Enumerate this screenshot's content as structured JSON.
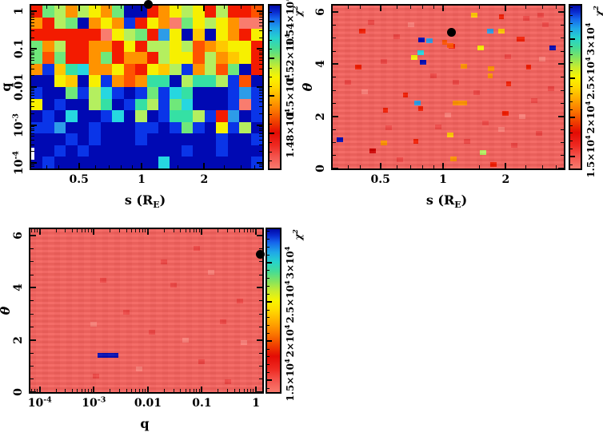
{
  "figure": {
    "background": "#ffffff"
  },
  "labels": {
    "colorbar_title": "χ^{2}"
  },
  "palette": {
    "N": "#0009b3",
    "B": "#0a35e8",
    "S": "#2d9ce8",
    "C": "#26d7e0",
    "T": "#35e0a4",
    "G": "#6fe87a",
    "P": "#b4ef5f",
    "Y": "#f7f000",
    "D": "#ffc800",
    "O": "#ff9300",
    "K": "#ff5300",
    "R": "#f31b00",
    "E": "#cf0000",
    "M": "#f97c6e",
    "F": "#ee4543",
    "L": "#fb8078",
    "bg": "#f4615c"
  },
  "colormap": [
    [
      "#f87a6d",
      0
    ],
    [
      "#f4564f",
      7
    ],
    [
      "#ee2a22",
      14
    ],
    [
      "#e30b04",
      22
    ],
    [
      "#f04300",
      29
    ],
    [
      "#fb7a00",
      36
    ],
    [
      "#ffab00",
      43
    ],
    [
      "#ffd900",
      50
    ],
    [
      "#f8f400",
      56
    ],
    [
      "#c9ec2e",
      62
    ],
    [
      "#84e45e",
      68
    ],
    [
      "#45dc96",
      74
    ],
    [
      "#26d3cc",
      80
    ],
    [
      "#1fa6e8",
      86
    ],
    [
      "#1563ec",
      92
    ],
    [
      "#0a2cd0",
      96
    ],
    [
      "#0109a8",
      100
    ]
  ],
  "chart_data": [
    {
      "id": "p1",
      "type": "heatmap",
      "xlabel": "s (R_{E})",
      "ylabel": "q",
      "xlabel_italic": false,
      "ylabel_italic": false,
      "x": {
        "type": "log",
        "min": 0.295,
        "max": 3.8,
        "major": [
          {
            "v": 0.5,
            "label": "0.5"
          },
          {
            "v": 1,
            "label": "1"
          },
          {
            "v": 2,
            "label": "2"
          }
        ],
        "minor": [
          0.35,
          0.4,
          0.6,
          0.7,
          0.8,
          0.9,
          1.5,
          2.5,
          3,
          3.5
        ]
      },
      "y": {
        "type": "log",
        "min": 7.2e-05,
        "max": 1.395,
        "major": [
          {
            "v": 1,
            "label": "1"
          },
          {
            "v": 0.1,
            "label": "0.1"
          },
          {
            "v": 0.01,
            "label": "0.01"
          },
          {
            "v": 0.001,
            "label": "10^{-3}"
          },
          {
            "v": 0.0001,
            "label": "10^{-4}"
          }
        ],
        "minor": "log"
      },
      "cb": {
        "min": 14610,
        "max": 15485,
        "minor_step": 50,
        "major": [
          {
            "v": 14800,
            "label": "1.48×10^{4}"
          },
          {
            "v": 15000,
            "label": "1.5×10^{4}"
          },
          {
            "v": 15200,
            "label": "1.52×10^{4}"
          },
          {
            "v": 15400,
            "label": "1.54×10^{4}"
          }
        ]
      },
      "grid": [
        "RGPOPYOGNNROYPYRPRRK",
        "ORPGNOYOBRYOMGYPYOMM",
        "RRRRRRMYPGRSYNDNYORY",
        "GOPRROORYRPPYPKODYYR",
        "GKGRROGROORPYYKPODYR",
        "OBDTCOOYKRYDPBOPKGNR",
        "NNYDNYBOKOTTNPTTPBKN",
        "BNNGBPCBNBGBCTNNNBSB",
        "YNBNNPTNBTPBGCNNNBMB",
        "NBNCNNBCNPNBTTPBRSNB",
        "BBSNNBNNNBBNBGBNYBPN",
        "NNNBNBNNNBNNNNNNBNNB",
        "NNBNBNNNNNNNNBNNBNNN",
        "NBNNNNNNNNNCNNNNNNNB"
      ],
      "artifacts": [
        [
          0,
          178,
          4,
          15
        ],
        [
          289,
          178,
          4,
          15
        ]
      ],
      "best_fit": {
        "x": 1.08,
        "y": 1.5
      }
    },
    {
      "id": "p2",
      "type": "heatmap",
      "xlabel": "s (R_{E})",
      "ylabel": "θ",
      "xlabel_italic": false,
      "ylabel_italic": true,
      "background": "bg",
      "x": {
        "type": "log",
        "min": 0.295,
        "max": 3.8,
        "major": [
          {
            "v": 0.5,
            "label": "0.5"
          },
          {
            "v": 1,
            "label": "1"
          },
          {
            "v": 2,
            "label": "2"
          }
        ],
        "minor": [
          0.35,
          0.4,
          0.6,
          0.7,
          0.8,
          0.9,
          1.5,
          2.5,
          3,
          3.5
        ]
      },
      "y": {
        "type": "linear",
        "min": 0,
        "max": 6.25,
        "major": [
          {
            "v": 0,
            "label": "0"
          },
          {
            "v": 2,
            "label": "2"
          },
          {
            "v": 4,
            "label": "4"
          },
          {
            "v": 6,
            "label": "6"
          }
        ],
        "minor_step": 0.5
      },
      "cb": {
        "min": 13500,
        "max": 34300,
        "minor_step": 1000,
        "major": [
          {
            "v": 15000,
            "label": "1.5×10^{4}"
          },
          {
            "v": 20000,
            "label": "2×10^{4}"
          },
          {
            "v": 25000,
            "label": "2.5×10^{4}"
          },
          {
            "v": 30000,
            "label": "3×10^{4}"
          }
        ]
      },
      "anomalies": [
        [
          0.32,
          1.1,
          "N"
        ],
        [
          0.52,
          0.98,
          "O"
        ],
        [
          0.46,
          0.66,
          "E"
        ],
        [
          0.41,
          5.26,
          "R"
        ],
        [
          0.39,
          3.9,
          "R"
        ],
        [
          0.78,
          4.43,
          "C"
        ],
        [
          0.73,
          4.25,
          "Y"
        ],
        [
          0.8,
          4.06,
          "N"
        ],
        [
          0.79,
          4.92,
          "N"
        ],
        [
          0.86,
          4.9,
          "S"
        ],
        [
          1.02,
          4.83,
          "K",
          6
        ],
        [
          1.1,
          4.7,
          "R"
        ],
        [
          0.75,
          2.52,
          "S"
        ],
        [
          0.66,
          2.82,
          "R",
          6
        ],
        [
          1.08,
          1.28,
          "D"
        ],
        [
          0.74,
          1.05,
          "R",
          6
        ],
        [
          1.2,
          2.5,
          "O",
          18
        ],
        [
          1.26,
          3.92,
          "O"
        ],
        [
          1.7,
          3.82,
          "O"
        ],
        [
          1.12,
          0.37,
          "O"
        ],
        [
          1.55,
          0.6,
          "P"
        ],
        [
          1.41,
          5.88,
          "D"
        ],
        [
          1.9,
          5.83,
          "R",
          6
        ],
        [
          1.69,
          5.28,
          "S"
        ],
        [
          1.9,
          5.28,
          "D"
        ],
        [
          2.35,
          4.95,
          "R",
          10
        ],
        [
          1.08,
          4.73,
          "K"
        ],
        [
          1.51,
          4.64,
          "Y"
        ],
        [
          3.35,
          4.64,
          "N"
        ],
        [
          2.58,
          3.9,
          "R",
          6
        ],
        [
          1.69,
          3.55,
          "O",
          6
        ],
        [
          2.07,
          3.25,
          "R",
          6
        ],
        [
          2.0,
          2.1,
          "R"
        ],
        [
          1.75,
          0.15,
          "R"
        ],
        [
          0.78,
          2.3,
          "R",
          6
        ],
        [
          0.53,
          2.25,
          "R",
          6
        ]
      ],
      "faint": [
        [
          0.45,
          5.62,
          "F"
        ],
        [
          0.6,
          5.05,
          "F"
        ],
        [
          0.52,
          4.1,
          "F"
        ],
        [
          0.35,
          3.3,
          "F"
        ],
        [
          0.62,
          0.35,
          "F"
        ],
        [
          0.95,
          1.6,
          "F"
        ],
        [
          1.3,
          1.05,
          "F"
        ],
        [
          1.6,
          1.75,
          "F"
        ],
        [
          2.2,
          0.9,
          "F"
        ],
        [
          2.75,
          2.6,
          "F"
        ],
        [
          3.1,
          5.5,
          "F"
        ],
        [
          2.5,
          5.75,
          "F"
        ],
        [
          1.15,
          3.3,
          "F"
        ],
        [
          0.9,
          3.55,
          "F"
        ],
        [
          2.9,
          1.35,
          "F"
        ],
        [
          3.3,
          3.05,
          "F"
        ],
        [
          2.05,
          4.3,
          "F"
        ],
        [
          1.45,
          2.9,
          "F"
        ],
        [
          0.55,
          1.55,
          "F"
        ],
        [
          2.95,
          5.88,
          "F"
        ],
        [
          0.7,
          5.5,
          "L"
        ],
        [
          1.9,
          1.5,
          "L"
        ],
        [
          2.4,
          2.0,
          "L"
        ],
        [
          3.0,
          4.2,
          "L"
        ],
        [
          1.05,
          2.05,
          "L"
        ],
        [
          0.42,
          2.95,
          "L"
        ]
      ],
      "best_fit": {
        "x": 1.1,
        "y": 5.22
      }
    },
    {
      "id": "p3",
      "type": "heatmap",
      "xlabel": "q",
      "ylabel": "θ",
      "xlabel_italic": false,
      "ylabel_italic": true,
      "background": "bg",
      "x": {
        "type": "log",
        "min": 6.7e-05,
        "max": 1.31,
        "major": [
          {
            "v": 0.0001,
            "label": "10^{-4}"
          },
          {
            "v": 0.001,
            "label": "10^{-3}"
          },
          {
            "v": 0.01,
            "label": "0.01"
          },
          {
            "v": 0.1,
            "label": "0.1"
          },
          {
            "v": 1,
            "label": "1"
          }
        ],
        "minor": "log"
      },
      "y": {
        "type": "linear",
        "min": 0,
        "max": 6.25,
        "major": [
          {
            "v": 0,
            "label": "0"
          },
          {
            "v": 2,
            "label": "2"
          },
          {
            "v": 4,
            "label": "4"
          },
          {
            "v": 6,
            "label": "6"
          }
        ],
        "minor_step": 0.5
      },
      "cb": {
        "min": 13500,
        "max": 34300,
        "minor_step": 1000,
        "major": [
          {
            "v": 15000,
            "label": "1.5×10^{4}"
          },
          {
            "v": 20000,
            "label": "2×10^{4}"
          },
          {
            "v": 25000,
            "label": "2.5×10^{4}"
          },
          {
            "v": 30000,
            "label": "3×10^{4}"
          }
        ]
      },
      "anomalies": [
        [
          0.0018,
          1.42,
          "N",
          26
        ]
      ],
      "faint": [
        [
          0.0011,
          0.62,
          "F"
        ],
        [
          0.004,
          3.05,
          "F"
        ],
        [
          0.012,
          2.3,
          "F"
        ],
        [
          0.03,
          4.1,
          "F"
        ],
        [
          0.1,
          1.15,
          "F"
        ],
        [
          0.25,
          2.7,
          "F"
        ],
        [
          0.5,
          3.5,
          "F"
        ],
        [
          0.02,
          5.0,
          "F"
        ],
        [
          0.0015,
          4.3,
          "F"
        ],
        [
          0.08,
          5.5,
          "F"
        ],
        [
          0.3,
          0.4,
          "F"
        ],
        [
          0.6,
          1.9,
          "L"
        ],
        [
          0.007,
          0.9,
          "L"
        ],
        [
          0.05,
          2.0,
          "L"
        ],
        [
          0.15,
          4.6,
          "L"
        ],
        [
          0.001,
          2.6,
          "L"
        ]
      ],
      "best_fit": {
        "x": 1.22,
        "y": 5.28
      }
    }
  ]
}
